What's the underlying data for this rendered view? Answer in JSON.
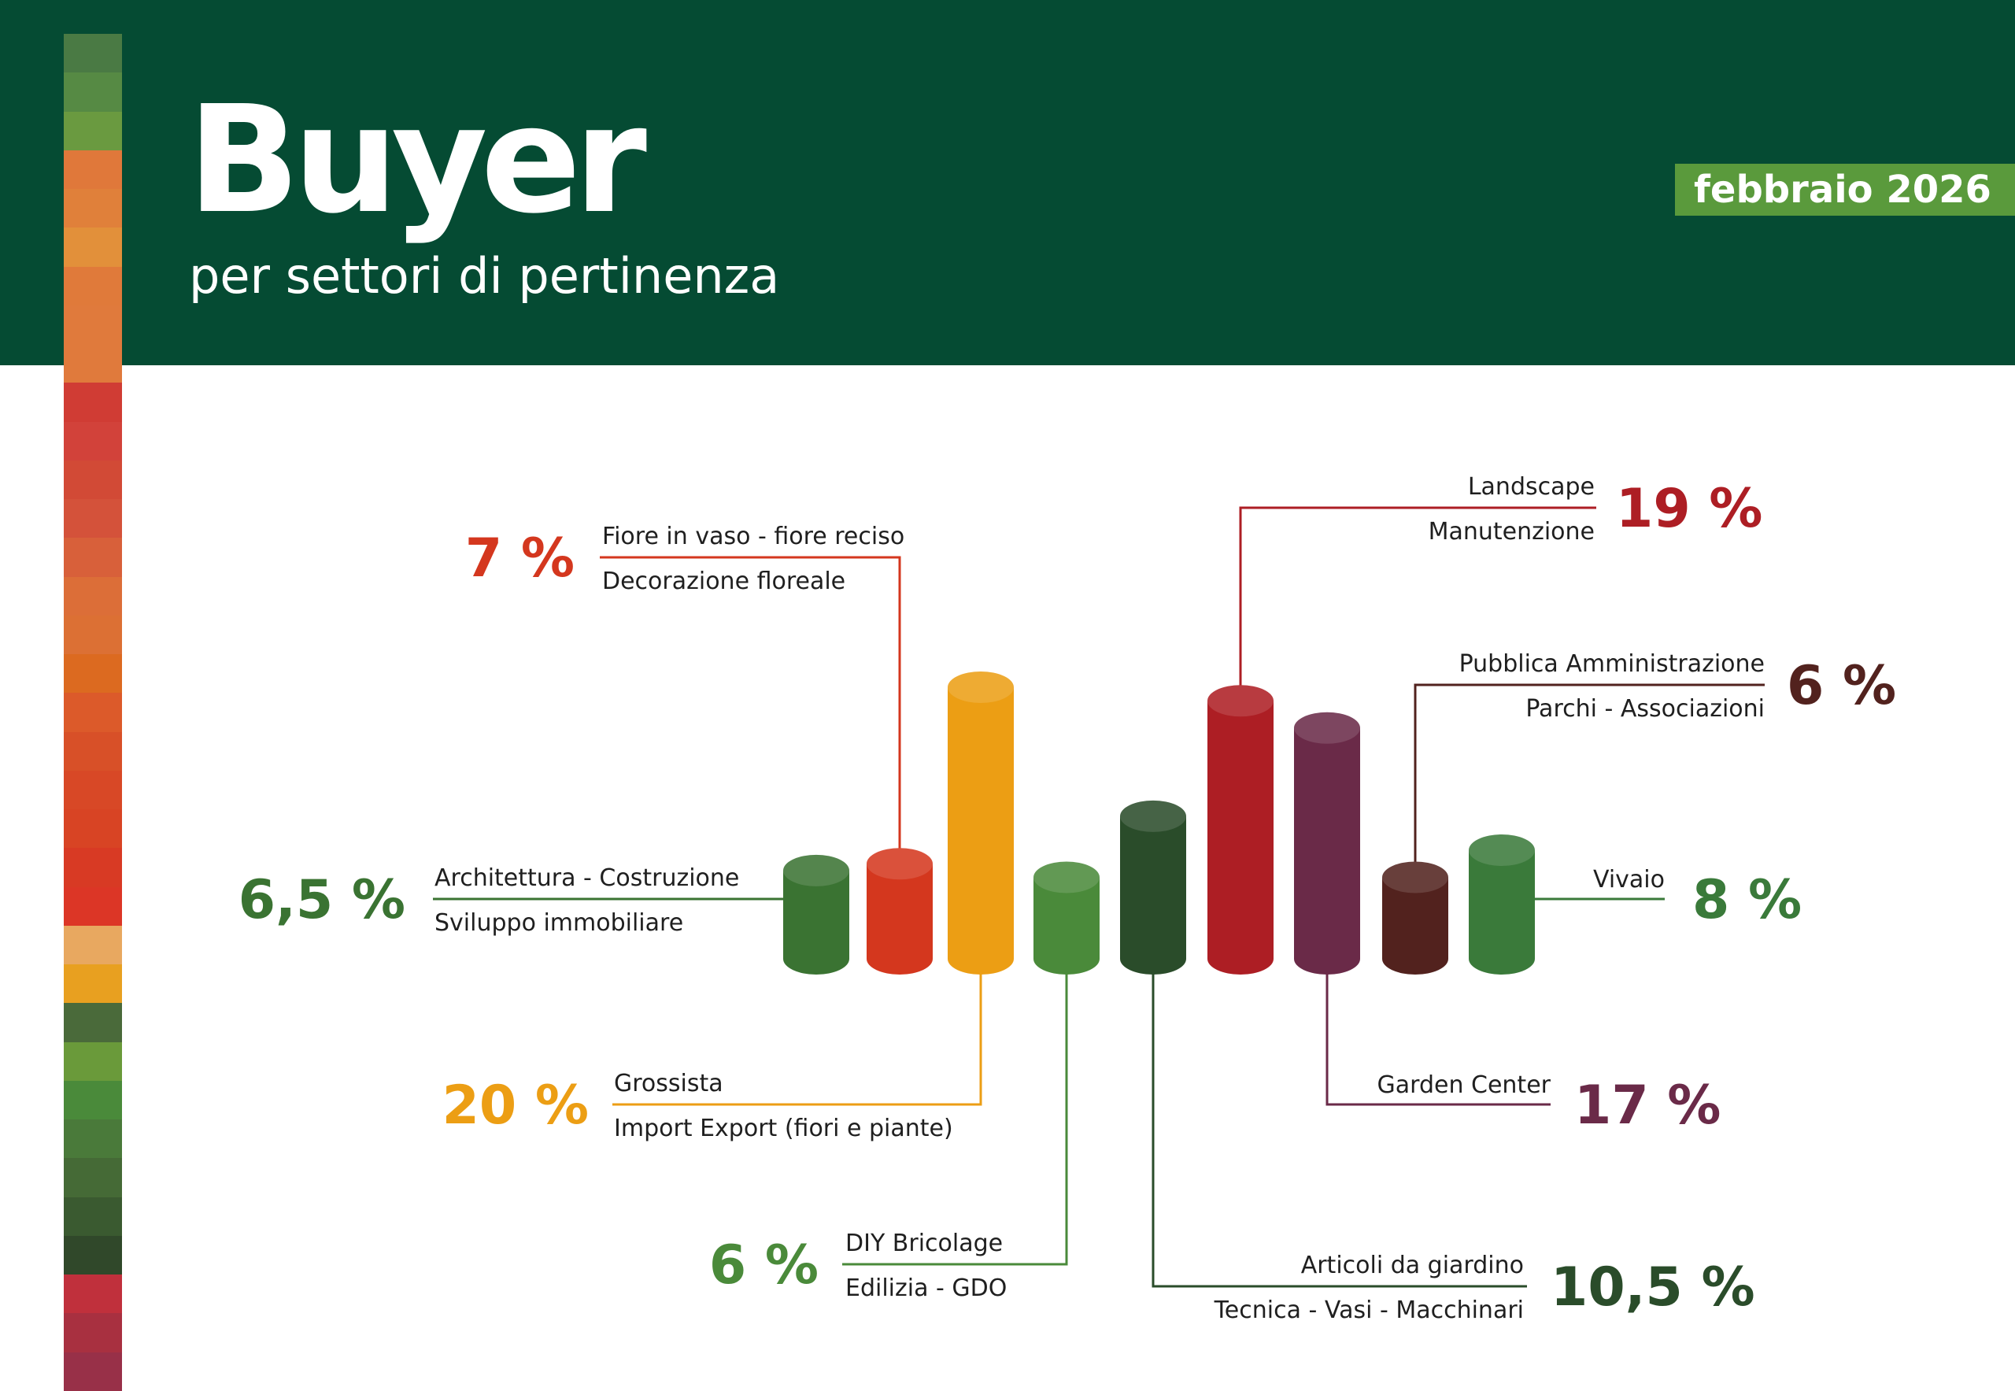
{
  "header": {
    "title": "Buyer",
    "subtitle": "per settori di pertinenza",
    "date_badge": "febbraio 2026"
  },
  "colors": {
    "header_bg": "#054b33",
    "badge_bg": "#5a9a3c",
    "strip": [
      "#4a7a44",
      "#568a44",
      "#6a9a40",
      "#e0783a",
      "#e0803a",
      "#e2903a",
      "#e07a3a",
      "#e07a3c",
      "#e07a3c",
      "#d03c34",
      "#d2423a",
      "#d24a36",
      "#d4523a",
      "#d8603a",
      "#dc6e38",
      "#dc7034",
      "#dc6a20",
      "#dc5a2a",
      "#d85028",
      "#d84826",
      "#d84424",
      "#d83a24",
      "#dc3626",
      "#e8a860",
      "#e8a020",
      "#4a6a3a",
      "#6a9a3a",
      "#4a8a3a",
      "#4a7a3a",
      "#456a36",
      "#3a5a30",
      "#30482a",
      "#c0303c",
      "#a83040",
      "#983048"
    ]
  },
  "chart_data": {
    "type": "bar",
    "title": "Buyer",
    "subtitle": "per settori di pertinenza",
    "unit": "%",
    "categories": [
      "Architettura - Costruzione / Sviluppo immobiliare",
      "Fiore in vaso - fiore reciso / Decorazione floreale",
      "Grossista / Import Export (fiori e piante)",
      "DIY Bricolage / Edilizia - GDO",
      "Articoli da giardino / Tecnica - Vasi - Macchinari",
      "Landscape / Manutenzione",
      "Garden Center",
      "Pubblica Amministrazione / Parchi - Associazioni",
      "Vivaio"
    ],
    "values": [
      6.5,
      7,
      20,
      6,
      10.5,
      19,
      17,
      6,
      8
    ],
    "bars": [
      {
        "value": 6.5,
        "pct_label": "6,5 %",
        "line1": "Architettura - Costruzione",
        "line2": "Sviluppo immobiliare",
        "color": "#3a7332",
        "label_color": "#3a7332"
      },
      {
        "value": 7,
        "pct_label": "7 %",
        "line1": "Fiore in vaso - fiore reciso",
        "line2": "Decorazione floreale",
        "color": "#d4371e",
        "label_color": "#d4371e"
      },
      {
        "value": 20,
        "pct_label": "20 %",
        "line1": "Grossista",
        "line2": "Import Export (fiori e piante)",
        "color": "#ec9e14",
        "label_color": "#ec9e14"
      },
      {
        "value": 6,
        "pct_label": "6 %",
        "line1": "DIY Bricolage",
        "line2": "Edilizia - GDO",
        "color": "#4a8a3a",
        "label_color": "#4a8a3a"
      },
      {
        "value": 10.5,
        "pct_label": "10,5 %",
        "line1": "Articoli da giardino",
        "line2": "Tecnica - Vasi - Macchinari",
        "color": "#2a4c2a",
        "label_color": "#2a4c2a"
      },
      {
        "value": 19,
        "pct_label": "19 %",
        "line1": "Landscape",
        "line2": "Manutenzione",
        "color": "#ad1e24",
        "label_color": "#ad1e24"
      },
      {
        "value": 17,
        "pct_label": "17 %",
        "line1": "Garden Center",
        "line2": "",
        "color": "#6a2a48",
        "label_color": "#6a2a48"
      },
      {
        "value": 6,
        "pct_label": "6 %",
        "line1": "Pubblica Amministrazione",
        "line2": "Parchi - Associazioni",
        "color": "#52221e",
        "label_color": "#52221e"
      },
      {
        "value": 8,
        "pct_label": "8 %",
        "line1": "Vivaio",
        "line2": "",
        "color": "#3a7a3a",
        "label_color": "#3a7a3a"
      }
    ]
  }
}
